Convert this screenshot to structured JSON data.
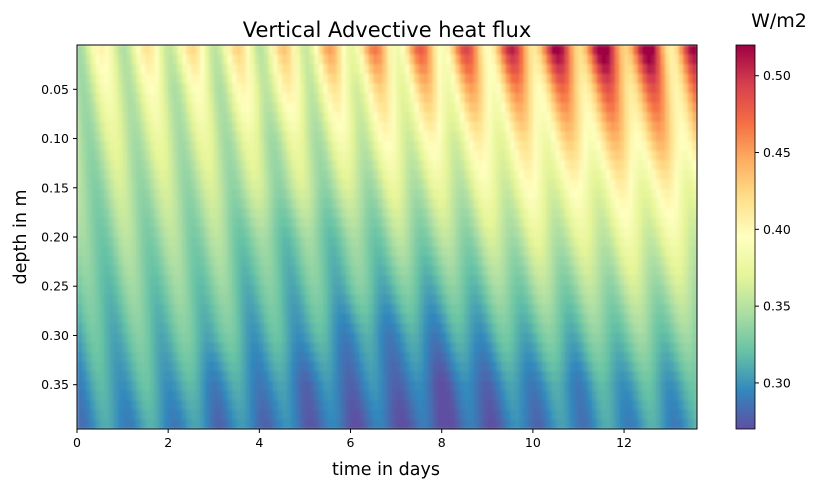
{
  "chart_data": {
    "type": "heatmap",
    "title": "Vertical Advective heat flux",
    "xlabel": "time in days",
    "ylabel": "depth in m",
    "colorbar_label": "W/m2",
    "colormap": "Spectral_r",
    "xlim": [
      0,
      13.6
    ],
    "ylim": [
      0.395,
      0.005
    ],
    "x_ticks": [
      0,
      2,
      4,
      6,
      8,
      10,
      12
    ],
    "x_tick_labels": [
      "0",
      "2",
      "4",
      "6",
      "8",
      "10",
      "12"
    ],
    "y_ticks": [
      0.05,
      0.1,
      0.15,
      0.2,
      0.25,
      0.3,
      0.35
    ],
    "y_tick_labels": [
      "0.05",
      "0.10",
      "0.15",
      "0.20",
      "0.25",
      "0.30",
      "0.35"
    ],
    "color_range": [
      0.27,
      0.52
    ],
    "colorbar_ticks": [
      0.3,
      0.35,
      0.4,
      0.45,
      0.5
    ],
    "colorbar_tick_labels": [
      "0.30",
      "0.35",
      "0.40",
      "0.45",
      "0.50"
    ],
    "depth": [
      0.005,
      0.05,
      0.1,
      0.15,
      0.2,
      0.25,
      0.3,
      0.35,
      0.395
    ],
    "time": [
      0,
      1,
      2,
      3,
      4,
      5,
      6,
      7,
      8,
      9,
      10,
      11,
      12,
      13.6
    ],
    "values_daily_mean": [
      [
        0.37,
        0.38,
        0.39,
        0.39,
        0.39,
        0.4,
        0.42,
        0.43,
        0.44,
        0.45,
        0.47,
        0.48,
        0.49,
        0.46
      ],
      [
        0.36,
        0.37,
        0.37,
        0.37,
        0.38,
        0.38,
        0.39,
        0.4,
        0.41,
        0.42,
        0.43,
        0.44,
        0.45,
        0.44
      ],
      [
        0.35,
        0.36,
        0.36,
        0.36,
        0.36,
        0.36,
        0.37,
        0.38,
        0.38,
        0.39,
        0.4,
        0.41,
        0.42,
        0.42
      ],
      [
        0.34,
        0.35,
        0.35,
        0.35,
        0.35,
        0.35,
        0.35,
        0.36,
        0.36,
        0.37,
        0.38,
        0.38,
        0.39,
        0.39
      ],
      [
        0.33,
        0.34,
        0.34,
        0.34,
        0.33,
        0.33,
        0.33,
        0.34,
        0.34,
        0.35,
        0.36,
        0.36,
        0.37,
        0.37
      ],
      [
        0.32,
        0.33,
        0.33,
        0.33,
        0.32,
        0.32,
        0.32,
        0.32,
        0.32,
        0.33,
        0.34,
        0.34,
        0.35,
        0.35
      ],
      [
        0.31,
        0.32,
        0.32,
        0.32,
        0.31,
        0.31,
        0.3,
        0.3,
        0.3,
        0.31,
        0.32,
        0.32,
        0.33,
        0.33
      ],
      [
        0.3,
        0.31,
        0.31,
        0.3,
        0.3,
        0.29,
        0.29,
        0.29,
        0.28,
        0.29,
        0.3,
        0.3,
        0.31,
        0.31
      ],
      [
        0.295,
        0.3,
        0.3,
        0.29,
        0.29,
        0.285,
        0.28,
        0.28,
        0.275,
        0.28,
        0.29,
        0.295,
        0.3,
        0.3
      ]
    ]
  }
}
